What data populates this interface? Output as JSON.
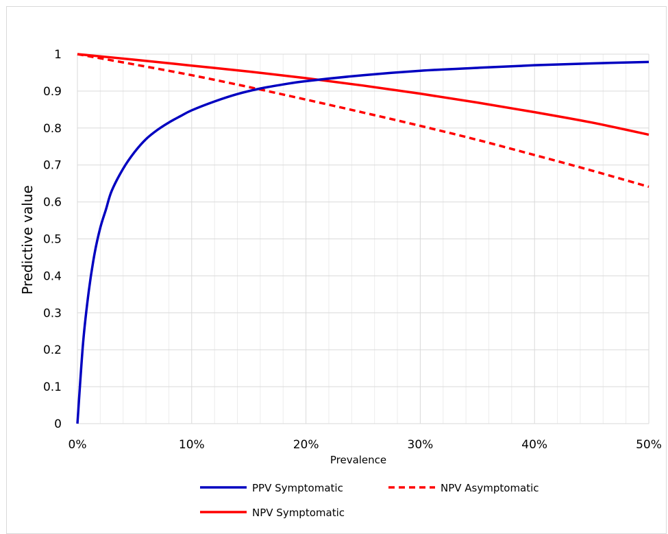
{
  "chart_data": {
    "type": "line",
    "title": "",
    "xlabel": "Prevalence",
    "ylabel": "Predictive value",
    "xlim": [
      0,
      0.5
    ],
    "ylim": [
      0,
      1
    ],
    "x_ticks": [
      0,
      0.1,
      0.2,
      0.3,
      0.4,
      0.5
    ],
    "x_tick_labels": [
      "0%",
      "10%",
      "20%",
      "30%",
      "40%",
      "50%"
    ],
    "y_ticks": [
      0,
      0.1,
      0.2,
      0.3,
      0.4,
      0.5,
      0.6,
      0.7,
      0.8,
      0.9,
      1
    ],
    "y_tick_labels": [
      "0",
      "0.1",
      "0.2",
      "0.3",
      "0.4",
      "0.5",
      "0.6",
      "0.7",
      "0.8",
      "0.9",
      "1"
    ],
    "grid": true,
    "legend_position": "bottom",
    "series": [
      {
        "name": "PPV Symptomatic",
        "color": "#0000c0",
        "dash": "solid",
        "x": [
          0,
          0.005,
          0.01,
          0.015,
          0.02,
          0.025,
          0.03,
          0.04,
          0.05,
          0.06,
          0.07,
          0.08,
          0.09,
          0.1,
          0.12,
          0.14,
          0.16,
          0.18,
          0.2,
          0.25,
          0.3,
          0.35,
          0.4,
          0.45,
          0.5
        ],
        "y": [
          0,
          0.22,
          0.36,
          0.46,
          0.53,
          0.58,
          0.63,
          0.69,
          0.735,
          0.77,
          0.795,
          0.815,
          0.832,
          0.848,
          0.872,
          0.892,
          0.907,
          0.918,
          0.927,
          0.943,
          0.955,
          0.963,
          0.97,
          0.975,
          0.979
        ]
      },
      {
        "name": "NPV Asymptomatic",
        "color": "#ff0000",
        "dash": "dashed",
        "x": [
          0,
          0.05,
          0.1,
          0.15,
          0.2,
          0.25,
          0.3,
          0.35,
          0.4,
          0.45,
          0.5
        ],
        "y": [
          1,
          0.972,
          0.943,
          0.911,
          0.877,
          0.842,
          0.806,
          0.768,
          0.727,
          0.685,
          0.641
        ]
      },
      {
        "name": "NPV Symptomatic",
        "color": "#ff0000",
        "dash": "solid",
        "x": [
          0,
          0.05,
          0.1,
          0.15,
          0.2,
          0.25,
          0.3,
          0.35,
          0.4,
          0.45,
          0.5
        ],
        "y": [
          1,
          0.985,
          0.969,
          0.953,
          0.935,
          0.915,
          0.893,
          0.869,
          0.843,
          0.815,
          0.782
        ]
      }
    ]
  }
}
